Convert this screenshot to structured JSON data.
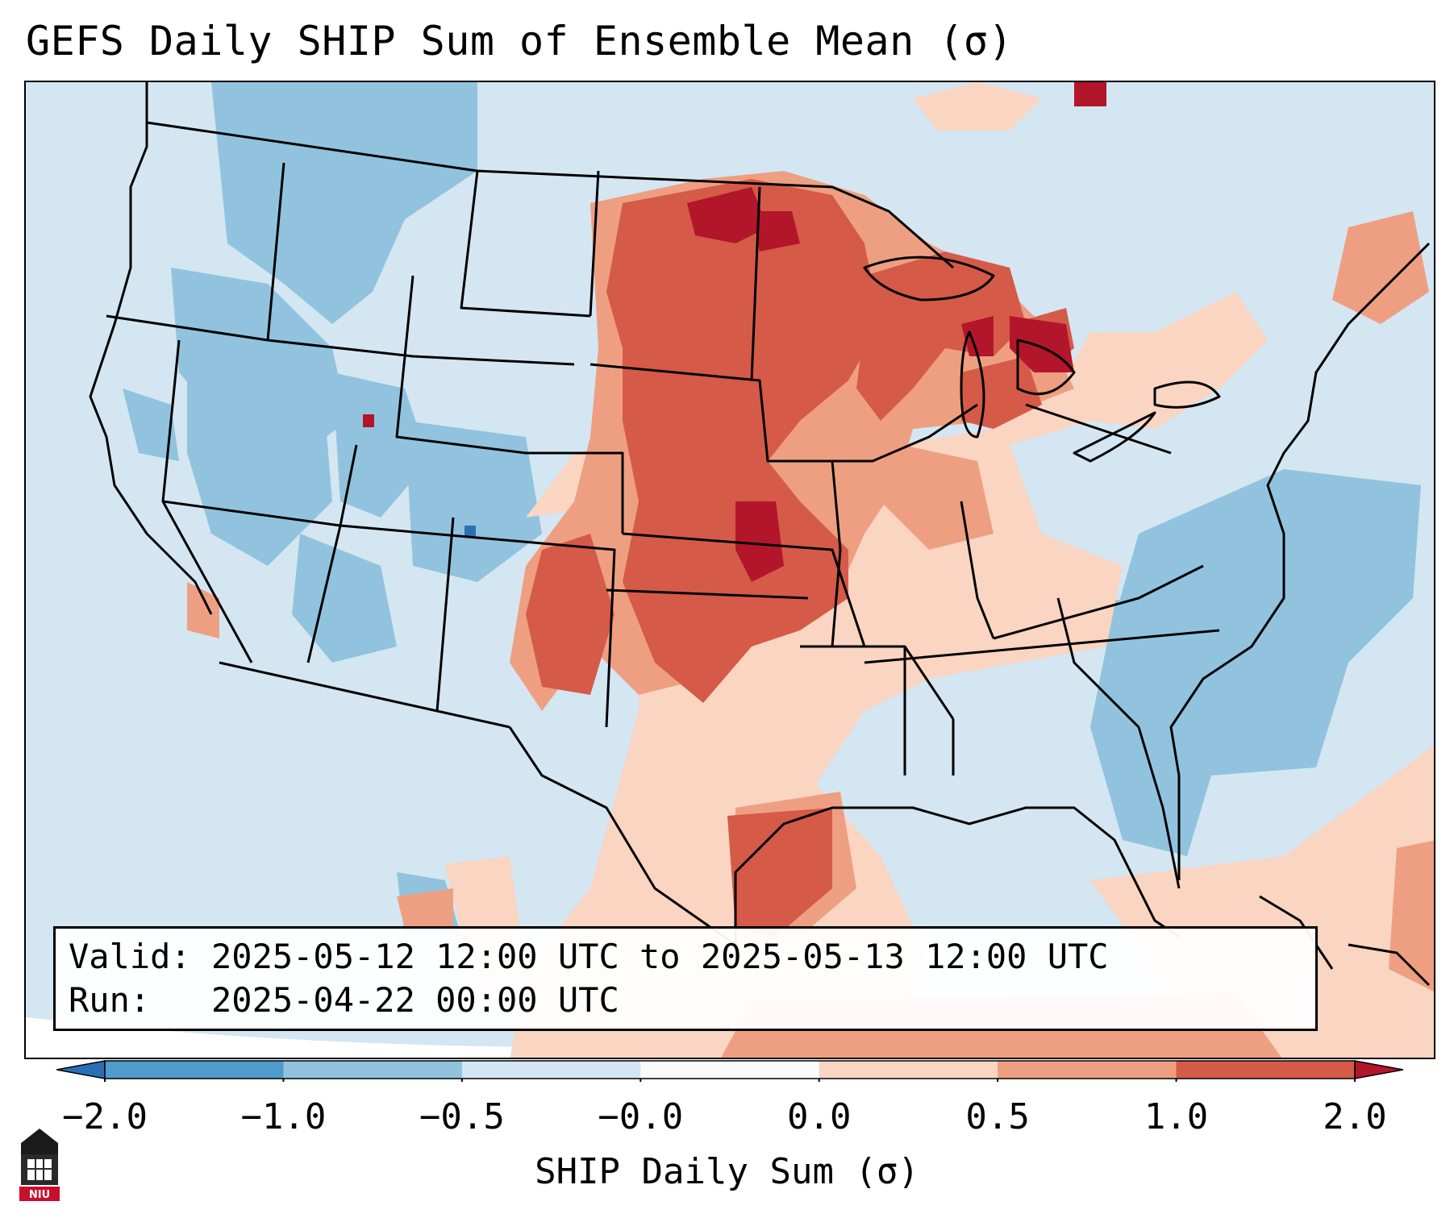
{
  "title": "GEFS Daily SHIP Sum of Ensemble Mean (σ)",
  "info": {
    "valid_line": "Valid: 2025-05-12 12:00 UTC to 2025-05-13 12:00 UTC",
    "run_line": "Run:   2025-04-22 00:00 UTC"
  },
  "colorbar": {
    "label": "SHIP Daily Sum (σ)",
    "ticks": [
      "−2.0",
      "−1.0",
      "−0.5",
      "−0.0",
      "0.0",
      "0.5",
      "1.0",
      "2.0"
    ],
    "colors": [
      "#2b6fb5",
      "#4f9bcc",
      "#91c3de",
      "#d4e6f1",
      "#fbfbfb",
      "#f9d5c2",
      "#ee9f82",
      "#d55a48",
      "#b3162a"
    ]
  },
  "logo": {
    "text": "NIU",
    "icon": "niu-university-logo-icon"
  },
  "map": {
    "region": "Continental United States",
    "dominant_positive_area": "Central Plains and Upper Midwest",
    "dominant_negative_area": "Western US and Atlantic offshore"
  }
}
